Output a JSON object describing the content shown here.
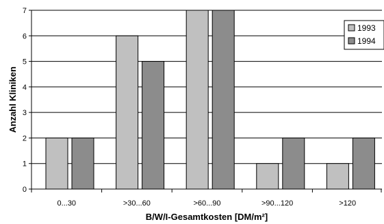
{
  "chart_data": {
    "type": "bar",
    "title": "",
    "xlabel": "B/W/I-Gesamtkosten [DM/m²]",
    "ylabel": "Anzahl Kliniken",
    "categories": [
      "0...30",
      ">30...60",
      ">60...90",
      ">90...120",
      ">120"
    ],
    "series": [
      {
        "name": "1993",
        "values": [
          2,
          6,
          7,
          1,
          1
        ],
        "color": "#c0c0c0"
      },
      {
        "name": "1994",
        "values": [
          2,
          5,
          7,
          2,
          2
        ],
        "color": "#8c8c8c"
      }
    ],
    "ylim": [
      0,
      7
    ],
    "yticks": [
      0,
      1,
      2,
      3,
      4,
      5,
      6,
      7
    ],
    "grid": true,
    "legend_position": "top-right"
  }
}
